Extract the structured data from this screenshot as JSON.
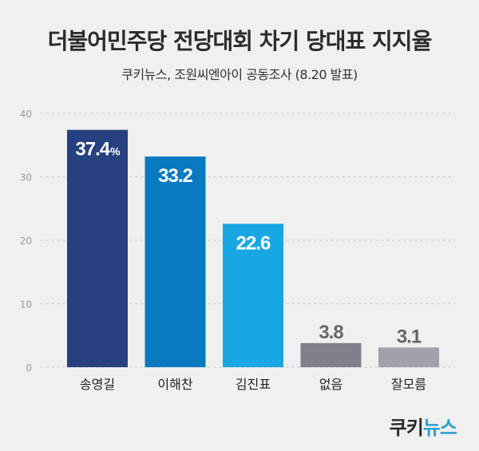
{
  "header": {
    "title": "더불어민주당 전당대회 차기 당대표 지지율",
    "subtitle": "쿠키뉴스, 조원씨엔아이 공동조사 (8.20 발표)"
  },
  "logo": {
    "part1": "쿠키",
    "part2": "뉴스"
  },
  "colors": {
    "background": "#f0f0f0",
    "grid": "#cfcfcf",
    "bars": [
      "#27407f",
      "#0a7ac0",
      "#19a7e3",
      "#807f8a",
      "#a2a1ab"
    ],
    "label_inside": "#ffffff",
    "label_outside": "#666666"
  },
  "chart_data": {
    "type": "bar",
    "categories": [
      "송영길",
      "이해찬",
      "김진표",
      "없음",
      "잘모름"
    ],
    "values": [
      37.4,
      33.2,
      22.6,
      3.8,
      3.1
    ],
    "value_labels": [
      "37.4",
      "33.2",
      "22.6",
      "3.8",
      "3.1"
    ],
    "unit_suffix": "%",
    "title": "더불어민주당 전당대회 차기 당대표 지지율",
    "subtitle": "쿠키뉴스, 조원씨엔아이 공동조사 (8.20 발표)",
    "ylim": [
      0,
      40
    ],
    "yticks": [
      0,
      10,
      20,
      30,
      40
    ],
    "grid": true,
    "label_inside": [
      true,
      true,
      true,
      false,
      false
    ]
  }
}
